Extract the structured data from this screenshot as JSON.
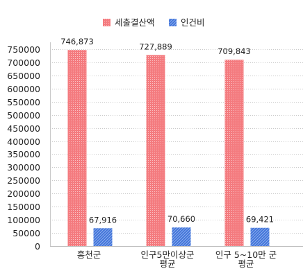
{
  "chart_data": {
    "type": "bar",
    "categories": [
      [
        "홍천군"
      ],
      [
        "인구5만이상군",
        "평균"
      ],
      [
        "인구 5~10만 군",
        "평균"
      ]
    ],
    "series": [
      {
        "name": "세출결산액",
        "values": [
          746873,
          727889,
          709843
        ],
        "labels": [
          "746,873",
          "727,889",
          "709,843"
        ],
        "color": "#f47b7f"
      },
      {
        "name": "인건비",
        "values": [
          67916,
          70660,
          69421
        ],
        "labels": [
          "67,916",
          "70,660",
          "69,421"
        ],
        "color": "#3f72d8"
      }
    ],
    "y_ticks": [
      "0",
      "50000",
      "100000",
      "150000",
      "200000",
      "250000",
      "300000",
      "350000",
      "400000",
      "450000",
      "500000",
      "550000",
      "600000",
      "650000",
      "700000",
      "750000"
    ],
    "ylim": [
      0,
      750000
    ],
    "grid": true,
    "legend_position": "top-center"
  }
}
